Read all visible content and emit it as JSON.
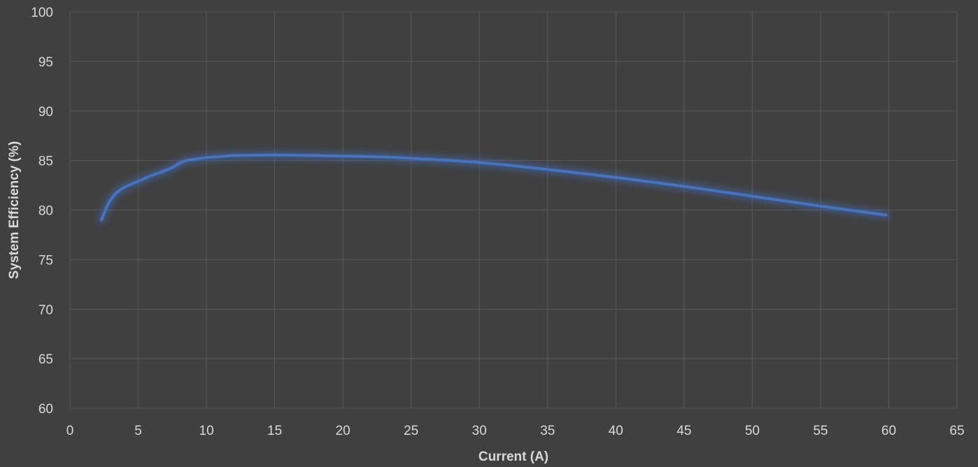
{
  "chart_data": {
    "type": "line",
    "title": "",
    "xlabel": "Current (A)",
    "ylabel": "System Efficiency (%)",
    "xlim": [
      0,
      65
    ],
    "ylim": [
      60,
      100
    ],
    "xticks": [
      0,
      5,
      10,
      15,
      20,
      25,
      30,
      35,
      40,
      45,
      50,
      55,
      60,
      65
    ],
    "yticks": [
      60,
      65,
      70,
      75,
      80,
      85,
      90,
      95,
      100
    ],
    "grid": true,
    "colors": {
      "background": "#404040",
      "grid": "#595959",
      "line": "#4472c4",
      "text": "#d9d9d9"
    },
    "series": [
      {
        "x": [
          2.3,
          2.8,
          3.3,
          4,
          5,
          6,
          7,
          7.5,
          8,
          8.5,
          9,
          10,
          11,
          12,
          14,
          16,
          18,
          20,
          22,
          24,
          26,
          28,
          30,
          32,
          35,
          40,
          45,
          50,
          55,
          59.8
        ],
        "y": [
          79.0,
          80.6,
          81.6,
          82.3,
          82.9,
          83.5,
          84.0,
          84.3,
          84.7,
          85.0,
          85.1,
          85.3,
          85.4,
          85.5,
          85.55,
          85.55,
          85.5,
          85.45,
          85.4,
          85.3,
          85.15,
          85.0,
          84.8,
          84.55,
          84.1,
          83.3,
          82.4,
          81.4,
          80.4,
          79.5
        ]
      }
    ]
  }
}
